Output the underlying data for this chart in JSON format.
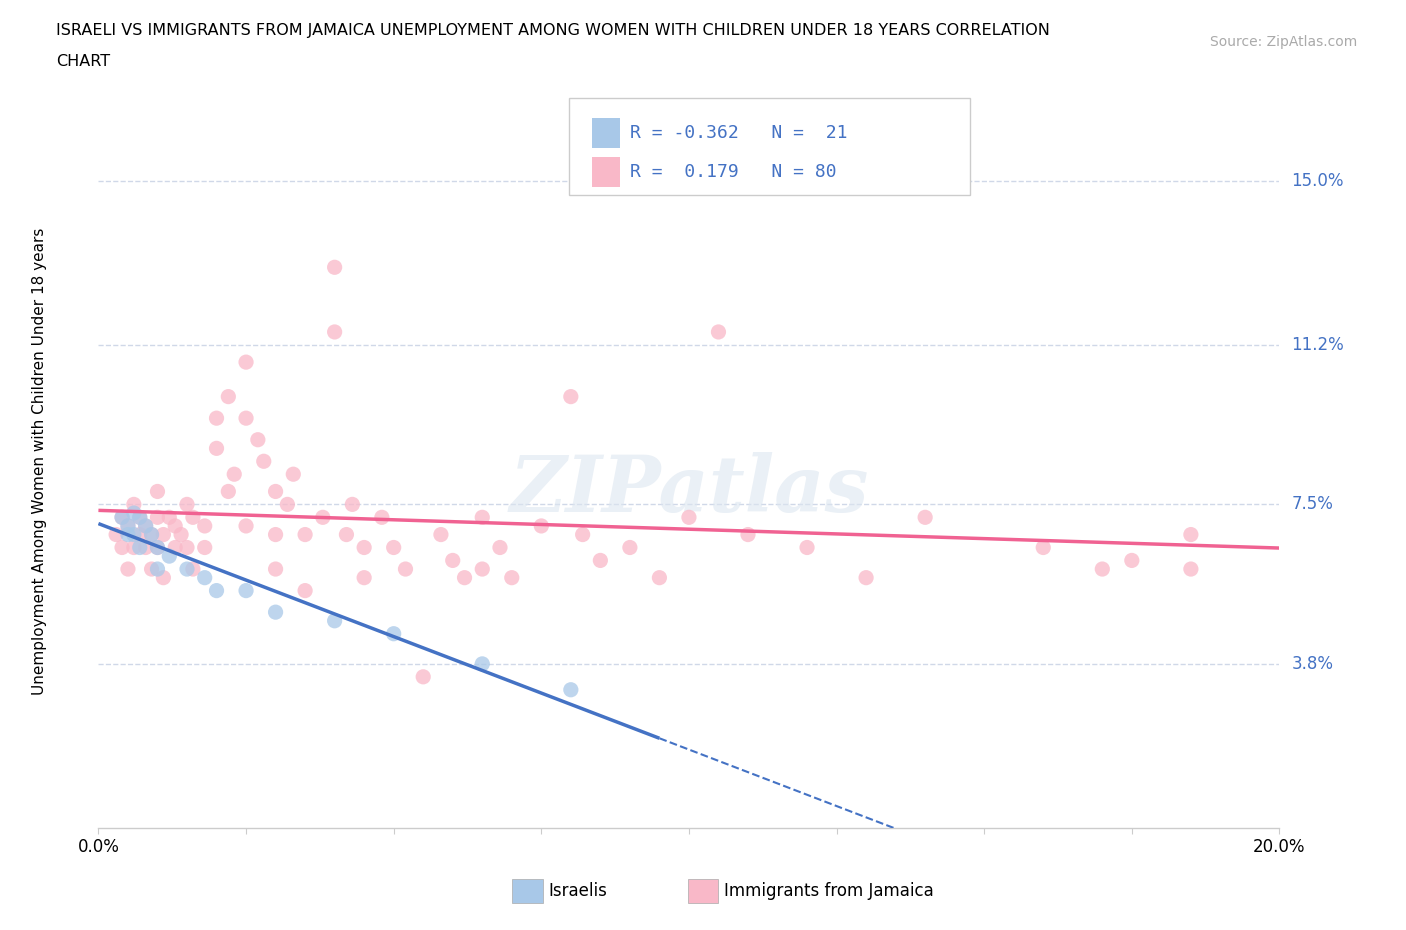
{
  "title_line1": "ISRAELI VS IMMIGRANTS FROM JAMAICA UNEMPLOYMENT AMONG WOMEN WITH CHILDREN UNDER 18 YEARS CORRELATION",
  "title_line2": "CHART",
  "source_text": "Source: ZipAtlas.com",
  "ylabel": "Unemployment Among Women with Children Under 18 years",
  "xlim": [
    0.0,
    0.2
  ],
  "ylim": [
    0.0,
    0.17
  ],
  "ytick_labels_right": [
    "15.0%",
    "11.2%",
    "7.5%",
    "3.8%"
  ],
  "ytick_vals_right": [
    0.15,
    0.112,
    0.075,
    0.038
  ],
  "israeli_line_color": "#4472c4",
  "jamaican_line_color": "#f06292",
  "israeli_marker_color": "#a8c8e8",
  "jamaican_marker_color": "#f9b8c8",
  "R_israeli": -0.362,
  "N_israeli": 21,
  "R_jamaican": 0.179,
  "N_jamaican": 80,
  "israeli_scatter": [
    [
      0.004,
      0.072
    ],
    [
      0.005,
      0.07
    ],
    [
      0.005,
      0.068
    ],
    [
      0.006,
      0.073
    ],
    [
      0.006,
      0.068
    ],
    [
      0.007,
      0.072
    ],
    [
      0.007,
      0.065
    ],
    [
      0.008,
      0.07
    ],
    [
      0.009,
      0.068
    ],
    [
      0.01,
      0.065
    ],
    [
      0.01,
      0.06
    ],
    [
      0.012,
      0.063
    ],
    [
      0.015,
      0.06
    ],
    [
      0.018,
      0.058
    ],
    [
      0.02,
      0.055
    ],
    [
      0.025,
      0.055
    ],
    [
      0.03,
      0.05
    ],
    [
      0.04,
      0.048
    ],
    [
      0.05,
      0.045
    ],
    [
      0.065,
      0.038
    ],
    [
      0.08,
      0.032
    ]
  ],
  "jamaican_scatter": [
    [
      0.003,
      0.068
    ],
    [
      0.004,
      0.065
    ],
    [
      0.004,
      0.072
    ],
    [
      0.005,
      0.06
    ],
    [
      0.005,
      0.07
    ],
    [
      0.006,
      0.065
    ],
    [
      0.006,
      0.075
    ],
    [
      0.007,
      0.068
    ],
    [
      0.007,
      0.072
    ],
    [
      0.008,
      0.065
    ],
    [
      0.008,
      0.07
    ],
    [
      0.009,
      0.06
    ],
    [
      0.009,
      0.068
    ],
    [
      0.01,
      0.072
    ],
    [
      0.01,
      0.065
    ],
    [
      0.01,
      0.078
    ],
    [
      0.011,
      0.068
    ],
    [
      0.011,
      0.058
    ],
    [
      0.012,
      0.072
    ],
    [
      0.013,
      0.065
    ],
    [
      0.013,
      0.07
    ],
    [
      0.014,
      0.068
    ],
    [
      0.015,
      0.075
    ],
    [
      0.015,
      0.065
    ],
    [
      0.016,
      0.072
    ],
    [
      0.016,
      0.06
    ],
    [
      0.018,
      0.07
    ],
    [
      0.018,
      0.065
    ],
    [
      0.02,
      0.095
    ],
    [
      0.02,
      0.088
    ],
    [
      0.022,
      0.1
    ],
    [
      0.022,
      0.078
    ],
    [
      0.023,
      0.082
    ],
    [
      0.025,
      0.108
    ],
    [
      0.025,
      0.095
    ],
    [
      0.025,
      0.07
    ],
    [
      0.027,
      0.09
    ],
    [
      0.028,
      0.085
    ],
    [
      0.03,
      0.078
    ],
    [
      0.03,
      0.068
    ],
    [
      0.03,
      0.06
    ],
    [
      0.032,
      0.075
    ],
    [
      0.033,
      0.082
    ],
    [
      0.035,
      0.068
    ],
    [
      0.035,
      0.055
    ],
    [
      0.038,
      0.072
    ],
    [
      0.04,
      0.13
    ],
    [
      0.04,
      0.115
    ],
    [
      0.042,
      0.068
    ],
    [
      0.043,
      0.075
    ],
    [
      0.045,
      0.065
    ],
    [
      0.045,
      0.058
    ],
    [
      0.048,
      0.072
    ],
    [
      0.05,
      0.065
    ],
    [
      0.052,
      0.06
    ],
    [
      0.055,
      0.035
    ],
    [
      0.058,
      0.068
    ],
    [
      0.06,
      0.062
    ],
    [
      0.062,
      0.058
    ],
    [
      0.065,
      0.072
    ],
    [
      0.065,
      0.06
    ],
    [
      0.068,
      0.065
    ],
    [
      0.07,
      0.058
    ],
    [
      0.075,
      0.07
    ],
    [
      0.08,
      0.1
    ],
    [
      0.082,
      0.068
    ],
    [
      0.085,
      0.062
    ],
    [
      0.09,
      0.065
    ],
    [
      0.095,
      0.058
    ],
    [
      0.1,
      0.072
    ],
    [
      0.105,
      0.115
    ],
    [
      0.11,
      0.068
    ],
    [
      0.12,
      0.065
    ],
    [
      0.13,
      0.058
    ],
    [
      0.14,
      0.072
    ],
    [
      0.16,
      0.065
    ],
    [
      0.17,
      0.06
    ],
    [
      0.175,
      0.062
    ],
    [
      0.185,
      0.068
    ],
    [
      0.185,
      0.06
    ]
  ],
  "watermark_text": "ZIPatlas",
  "legend_text_color": "#4472c4",
  "background_color": "#ffffff",
  "grid_color": "#d0d8e8",
  "right_label_color": "#4472c4",
  "scatter_alpha": 0.75,
  "scatter_size": 120,
  "israeli_line_x_end": 0.095,
  "legend_R_text_color": "#4472c4"
}
